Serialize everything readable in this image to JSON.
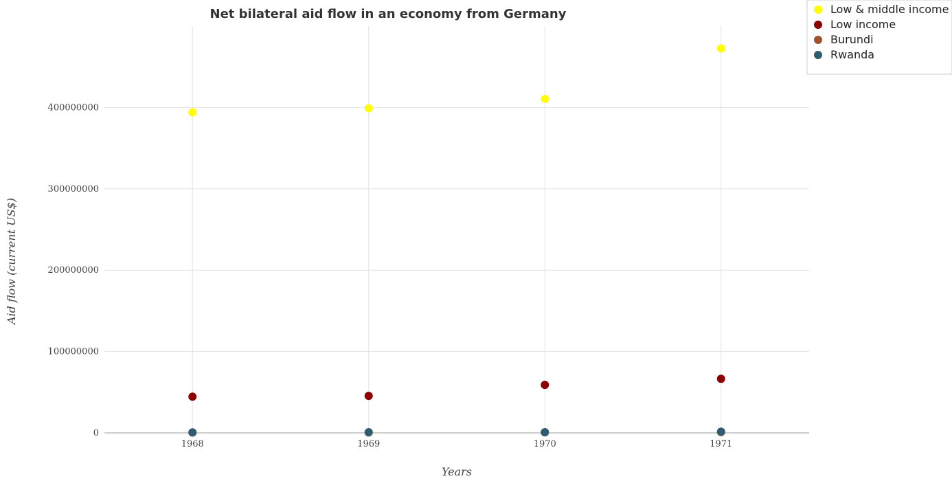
{
  "chart_data": {
    "type": "scatter",
    "title": "Net bilateral aid flow in an economy from Germany",
    "xlabel": "Years",
    "ylabel": "Aid flow (current US$)",
    "categories": [
      "1968",
      "1969",
      "1970",
      "1971"
    ],
    "ylim": [
      0,
      500000000
    ],
    "yticks": [
      0,
      100000000,
      200000000,
      300000000,
      400000000
    ],
    "ytick_labels": [
      "0",
      "100000000",
      "200000000",
      "300000000",
      "400000000"
    ],
    "grid": true,
    "legend_position": "top-right",
    "series": [
      {
        "name": "Low & middle income",
        "color": "#FFFF00",
        "values": [
          394000000,
          399000000,
          410500000,
          472500000
        ]
      },
      {
        "name": "Low income",
        "color": "#8B0000",
        "values": [
          44500000,
          45500000,
          59000000,
          66500000
        ]
      },
      {
        "name": "Burundi",
        "color": "#A0522D",
        "values": [
          400000,
          500000,
          600000,
          1000000
        ]
      },
      {
        "name": "Rwanda",
        "color": "#2E5E6E",
        "values": [
          600000,
          800000,
          800000,
          1500000
        ]
      }
    ]
  }
}
